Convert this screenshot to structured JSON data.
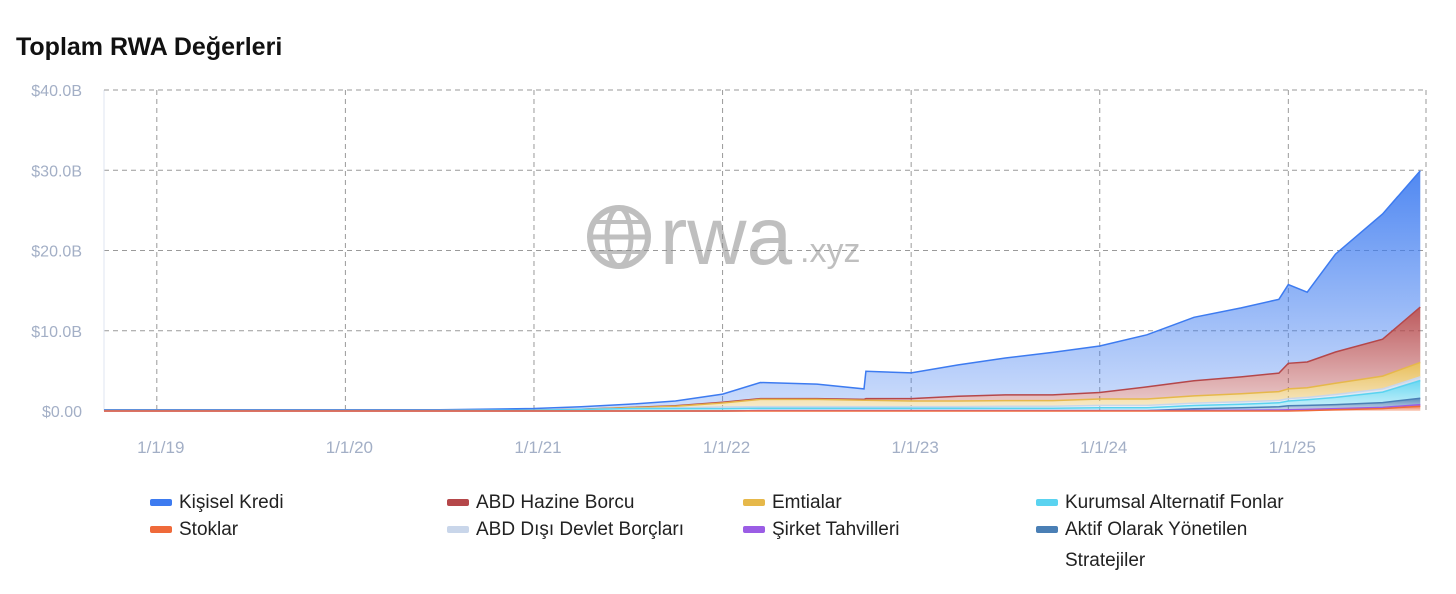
{
  "page": {
    "title": "Toplam RWA Değerleri"
  },
  "watermark": {
    "text": "rwa",
    "suffix": ".xyz"
  },
  "chart_data": {
    "type": "area",
    "stacked": true,
    "title": "Toplam RWA Değerleri",
    "xlabel": "",
    "ylabel": "",
    "ylim": [
      0,
      40
    ],
    "y_ticks": [
      "$0.00",
      "$10.0B",
      "$20.0B",
      "$30.0B",
      "$40.0B"
    ],
    "y_tick_values": [
      0,
      10,
      20,
      30,
      40
    ],
    "x_ticks": [
      "1/1/19",
      "1/1/20",
      "1/1/21",
      "1/1/22",
      "1/1/23",
      "1/1/24",
      "1/1/25"
    ],
    "x_tick_values": [
      2019,
      2020,
      2021,
      2022,
      2023,
      2024,
      2025
    ],
    "xlim": [
      2018.72,
      2025.73
    ],
    "grid": true,
    "legend_position": "bottom",
    "x": [
      2018.72,
      2019.5,
      2020.0,
      2020.5,
      2021.0,
      2021.25,
      2021.5,
      2021.75,
      2022.0,
      2022.2,
      2022.5,
      2022.75,
      2022.76,
      2023.0,
      2023.25,
      2023.5,
      2023.75,
      2024.0,
      2024.25,
      2024.5,
      2024.75,
      2024.95,
      2025.0,
      2025.1,
      2025.25,
      2025.5,
      2025.7
    ],
    "series": [
      {
        "name": "Stoklar",
        "color": "#ef6a3a",
        "values": [
          0,
          0,
          0,
          0,
          0,
          0,
          0,
          0,
          0,
          0,
          0,
          0,
          0,
          0,
          0,
          0,
          0,
          0,
          0,
          0,
          0,
          0,
          0,
          0.05,
          0.15,
          0.3,
          0.6
        ]
      },
      {
        "name": "Şirket Tahvilleri",
        "color": "#9b5de5",
        "values": [
          0,
          0,
          0,
          0,
          0,
          0,
          0,
          0,
          0,
          0.05,
          0.05,
          0.05,
          0.05,
          0.05,
          0.05,
          0.05,
          0.05,
          0.05,
          0.05,
          0.08,
          0.1,
          0.12,
          0.15,
          0.15,
          0.15,
          0.15,
          0.2
        ]
      },
      {
        "name": "Aktif Olarak Yönetilen Stratejiler",
        "color": "#4a7fb5",
        "values": [
          0,
          0,
          0,
          0,
          0,
          0,
          0,
          0,
          0,
          0,
          0,
          0,
          0,
          0,
          0,
          0,
          0,
          0,
          0,
          0.2,
          0.3,
          0.4,
          0.5,
          0.5,
          0.5,
          0.6,
          0.8
        ]
      },
      {
        "name": "Kurumsal Alternatif Fonlar",
        "color": "#5ad3f0",
        "values": [
          0.05,
          0.05,
          0.05,
          0.05,
          0.1,
          0.2,
          0.3,
          0.3,
          0.3,
          0.3,
          0.3,
          0.3,
          0.3,
          0.3,
          0.3,
          0.3,
          0.3,
          0.35,
          0.35,
          0.4,
          0.45,
          0.5,
          0.6,
          0.7,
          0.9,
          1.3,
          2.2
        ]
      },
      {
        "name": "ABD Dışı Devlet Borçları",
        "color": "#c9d6ea",
        "values": [
          0,
          0,
          0,
          0,
          0,
          0,
          0,
          0.1,
          0.2,
          0.2,
          0.2,
          0.2,
          0.2,
          0.2,
          0.2,
          0.25,
          0.25,
          0.3,
          0.3,
          0.3,
          0.3,
          0.3,
          0.3,
          0.3,
          0.35,
          0.4,
          0.45
        ]
      },
      {
        "name": "Emtialar",
        "color": "#e6b84a",
        "values": [
          0,
          0,
          0,
          0,
          0,
          0,
          0.1,
          0.2,
          0.5,
          0.9,
          0.9,
          0.8,
          0.8,
          0.7,
          0.7,
          0.7,
          0.7,
          0.8,
          0.8,
          0.9,
          1.0,
          1.1,
          1.2,
          1.2,
          1.4,
          1.6,
          1.8
        ]
      },
      {
        "name": "ABD Hazine Borcu",
        "color": "#b5474a",
        "values": [
          0,
          0,
          0,
          0,
          0.01,
          0.02,
          0.03,
          0.05,
          0.1,
          0.1,
          0.1,
          0.1,
          0.2,
          0.3,
          0.6,
          0.7,
          0.7,
          0.8,
          1.5,
          1.9,
          2.1,
          2.3,
          3.2,
          3.2,
          3.9,
          4.6,
          6.9
        ]
      },
      {
        "name": "Kişisel Kredi",
        "color": "#3d7bf0",
        "values": [
          0.1,
          0.1,
          0.1,
          0.1,
          0.2,
          0.3,
          0.4,
          0.6,
          1.0,
          2.0,
          1.8,
          1.3,
          3.4,
          3.2,
          3.9,
          4.6,
          5.3,
          5.8,
          6.5,
          7.9,
          8.6,
          9.2,
          9.8,
          8.7,
          12.2,
          15.6,
          17.0
        ]
      }
    ]
  },
  "legend": {
    "items": [
      {
        "label": "Kişisel Kredi",
        "color": "#3d7bf0"
      },
      {
        "label": "ABD Hazine Borcu",
        "color": "#b5474a"
      },
      {
        "label": "Emtialar",
        "color": "#e6b84a"
      },
      {
        "label": "Kurumsal Alternatif Fonlar",
        "color": "#5ad3f0"
      },
      {
        "label": "Stoklar",
        "color": "#ef6a3a"
      },
      {
        "label": "ABD Dışı Devlet Borçları",
        "color": "#c9d6ea"
      },
      {
        "label": "Şirket Tahvilleri",
        "color": "#9b5de5"
      },
      {
        "label": "Aktif Olarak Yönetilen Stratejiler",
        "color": "#4a7fb5"
      }
    ]
  }
}
